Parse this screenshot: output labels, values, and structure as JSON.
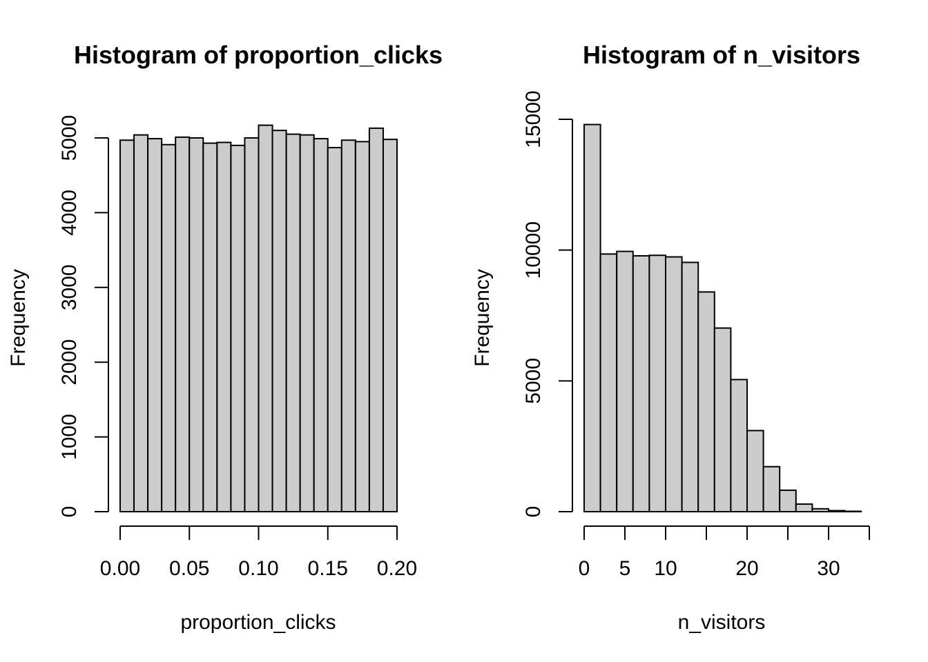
{
  "chart_data": [
    {
      "type": "bar",
      "title": "Histogram of proportion_clicks",
      "xlabel": "proportion_clicks",
      "ylabel": "Frequency",
      "bin_edges": [
        0.0,
        0.01,
        0.02,
        0.03,
        0.04,
        0.05,
        0.06,
        0.07,
        0.08,
        0.09,
        0.1,
        0.11,
        0.12,
        0.13,
        0.14,
        0.15,
        0.16,
        0.17,
        0.18,
        0.19,
        0.2
      ],
      "values": [
        4970,
        5040,
        4990,
        4910,
        5010,
        5000,
        4930,
        4940,
        4900,
        5000,
        5170,
        5100,
        5050,
        5040,
        4990,
        4870,
        4970,
        4950,
        5130,
        4980
      ],
      "xlim": [
        0.0,
        0.2
      ],
      "ylim": [
        0,
        5250
      ],
      "x_ticks": [
        0.0,
        0.05,
        0.1,
        0.15,
        0.2
      ],
      "x_tick_labels": [
        "0.00",
        "0.05",
        "0.10",
        "0.15",
        "0.20"
      ],
      "y_ticks": [
        0,
        1000,
        2000,
        3000,
        4000,
        5000
      ],
      "y_tick_labels": [
        "0",
        "1000",
        "2000",
        "3000",
        "4000",
        "5000"
      ],
      "bar_color": "#cccccc",
      "grid": false
    },
    {
      "type": "bar",
      "title": "Histogram of n_visitors",
      "xlabel": "n_visitors",
      "ylabel": "Frequency",
      "bin_edges": [
        0,
        2,
        4,
        6,
        8,
        10,
        12,
        14,
        16,
        18,
        20,
        22,
        24,
        26,
        28,
        30,
        32,
        34
      ],
      "values": [
        14800,
        9850,
        9950,
        9780,
        9800,
        9740,
        9530,
        8400,
        7020,
        5050,
        3100,
        1720,
        820,
        290,
        110,
        40,
        15
      ],
      "xlim": [
        0,
        35
      ],
      "ylim": [
        0,
        15500
      ],
      "x_ticks": [
        0,
        5,
        10,
        20,
        30
      ],
      "x_tick_labels": [
        "0",
        "5",
        "10",
        "20",
        "30"
      ],
      "x_tick_marks": [
        0,
        5,
        10,
        15,
        20,
        25,
        30,
        35
      ],
      "y_ticks": [
        0,
        5000,
        10000,
        15000
      ],
      "y_tick_labels": [
        "0",
        "5000",
        "10000",
        "15000"
      ],
      "bar_color": "#cccccc",
      "grid": false
    }
  ]
}
